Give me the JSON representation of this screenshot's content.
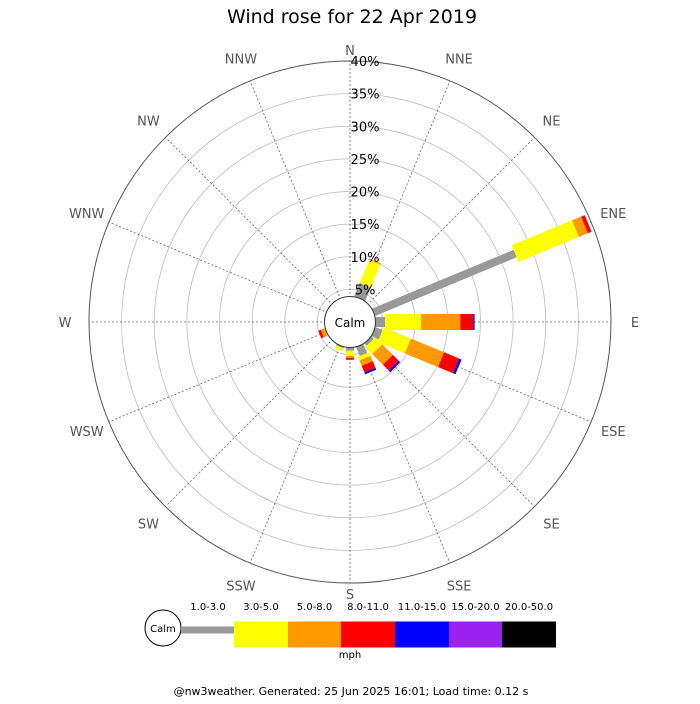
{
  "chart_data": {
    "type": "wind-rose",
    "title": "Wind rose for 22 Apr 2019",
    "center_label": "Calm",
    "radial_max": 40,
    "radial_ticks": [
      5,
      10,
      15,
      20,
      25,
      30,
      35,
      40
    ],
    "radial_tick_labels": [
      "5%",
      "10%",
      "15%",
      "20%",
      "25%",
      "30%",
      "35%",
      "40%"
    ],
    "grid": true,
    "directions": [
      "N",
      "NNE",
      "NE",
      "ENE",
      "E",
      "ESE",
      "SE",
      "SSE",
      "S",
      "SSW",
      "SW",
      "WSW",
      "W",
      "WNW",
      "NW",
      "NNW"
    ],
    "direction_angles": [
      0,
      22.5,
      45,
      67.5,
      90,
      112.5,
      135,
      157.5,
      180,
      202.5,
      225,
      247.5,
      270,
      292.5,
      315,
      337.5
    ],
    "speed_bins": [
      "1.0-3.0",
      "3.0-5.0",
      "5.0-8.0",
      "8.0-11.0",
      "11.0-15.0",
      "15.0-20.0",
      "20.0-50.0"
    ],
    "speed_colors": [
      "#999999",
      "#ffff00",
      "#ff9900",
      "#ff0000",
      "#0000ff",
      "#9922ee",
      "#000000"
    ],
    "unit": "mph",
    "calm_radius_percent": 3.9,
    "petals": [
      {
        "direction": "NNE",
        "angle": 22.5,
        "widths": [
          6,
          6
        ],
        "values": [
          2.2,
          3.8,
          0.2,
          0,
          0,
          0,
          0
        ]
      },
      {
        "direction": "ENE",
        "angle": 67.5,
        "widths": [
          4,
          9
        ],
        "values": [
          23.5,
          10,
          1.5,
          0.6,
          0,
          0,
          0
        ]
      },
      {
        "direction": "E",
        "angle": 90,
        "widths": [
          5,
          8
        ],
        "values": [
          1.5,
          5.5,
          6,
          2,
          0.2,
          0,
          0
        ]
      },
      {
        "direction": "ESE",
        "angle": 112.5,
        "widths": [
          5,
          8
        ],
        "values": [
          1.2,
          4.5,
          5.5,
          2.5,
          0.4,
          0,
          0
        ]
      },
      {
        "direction": "SE",
        "angle": 135,
        "widths": [
          5,
          7
        ],
        "values": [
          0.5,
          1.5,
          2.3,
          1.3,
          0.3,
          0,
          0
        ]
      },
      {
        "direction": "SSE",
        "angle": 157.5,
        "widths": [
          4,
          6
        ],
        "values": [
          1.5,
          0.6,
          0.9,
          1.1,
          0.3,
          0,
          0
        ]
      },
      {
        "direction": "S",
        "angle": 180,
        "widths": [
          4,
          4
        ],
        "values": [
          0.5,
          0.8,
          0.3,
          0.3,
          0,
          0,
          0
        ]
      },
      {
        "direction": "SSW",
        "angle": 202.5,
        "widths": [
          4,
          4
        ],
        "values": [
          0.2,
          0.5,
          0,
          0,
          0,
          0,
          0
        ]
      },
      {
        "direction": "WSW",
        "angle": 247.5,
        "widths": [
          4,
          4
        ],
        "values": [
          0,
          0.1,
          0.6,
          0.4,
          0,
          0,
          0
        ]
      }
    ]
  },
  "footer": "@nw3weather. Generated: 25 Jun 2025 16:01; Load time: 0.12 s"
}
